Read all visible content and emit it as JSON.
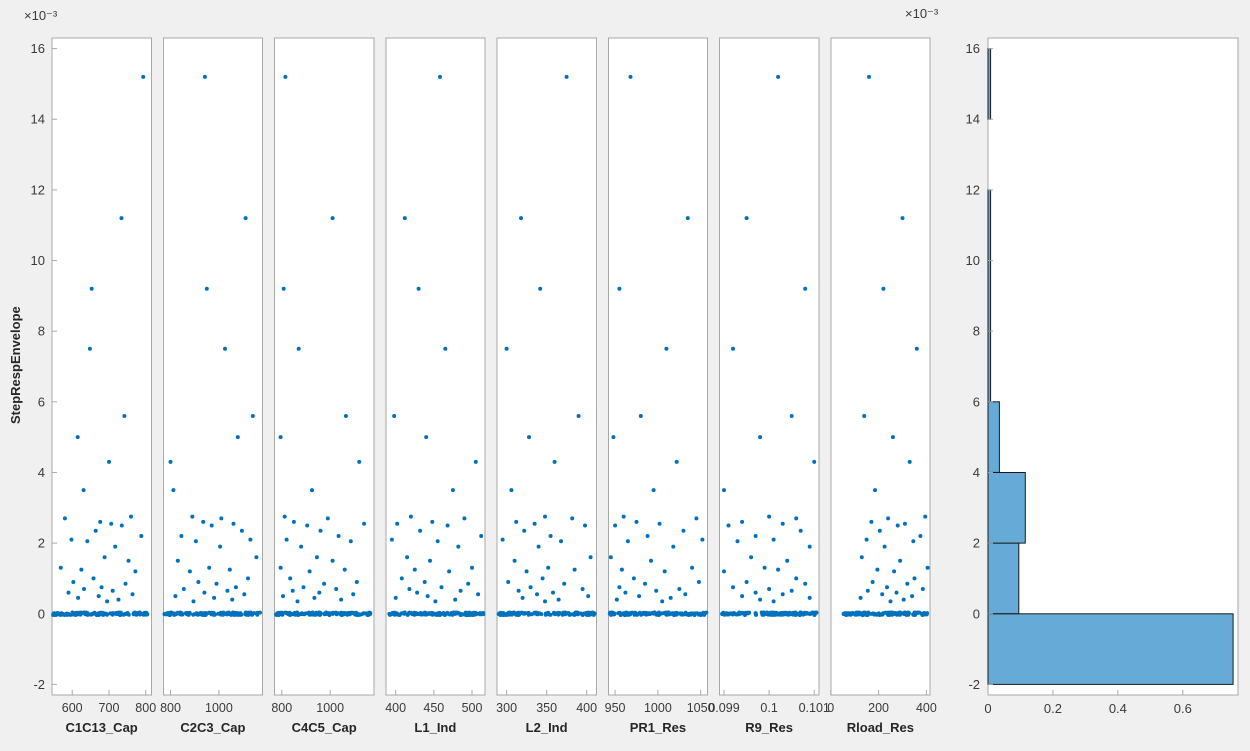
{
  "chart_data": {
    "type": "scatter",
    "title": "",
    "ylabel": "StepRespEnvelope",
    "y_exponent_label": "×10⁻³",
    "ylim": [
      -2.3,
      16.3
    ],
    "yticks": [
      16,
      14,
      12,
      10,
      8,
      6,
      4,
      2,
      0,
      -2
    ],
    "marker_color": "#0072bd",
    "axis_color": "#a8a8a8",
    "text_color": "#3a3a3a",
    "label_color": "#262626",
    "background": "#f0f0f0",
    "panel_background": "#ffffff",
    "shared_y_values_e3": [
      15.2,
      11.2,
      9.2,
      7.5,
      5.6,
      5.0,
      4.3,
      3.5,
      2.75,
      2.7,
      2.6,
      2.55,
      2.5,
      2.35,
      2.2,
      2.1,
      2.05,
      1.9,
      1.6,
      1.5,
      1.3,
      1.25,
      1.2,
      1.0,
      0.9,
      0.85,
      0.75,
      0.7,
      0.65,
      0.6,
      0.55,
      0.5,
      0.45,
      0.4,
      0.35
    ],
    "baseline": {
      "y": 0,
      "count": 130,
      "description": "dense cluster of samples with StepRespEnvelope ≈ 0 across the full parameter range"
    },
    "panels": [
      {
        "label": "C1C13_Cap",
        "xlim": [
          545,
          815
        ],
        "xtick_values": [
          600,
          700,
          800
        ],
        "xtick_labels": [
          "600",
          "700",
          "800"
        ],
        "baseline_x_range": [
          548,
          812
        ],
        "x_values": [
          793,
          734,
          653,
          648,
          742,
          615,
          700,
          631,
          760,
          580,
          676,
          706,
          735,
          664,
          788,
          598,
          641,
          717,
          688,
          753,
          569,
          625,
          772,
          658,
          603,
          745,
          680,
          632,
          710,
          590,
          764,
          672,
          616,
          726,
          695
        ]
      },
      {
        "label": "C2C3_Cap",
        "xlim": [
          770,
          1180
        ],
        "xtick_values": [
          800,
          1000
        ],
        "xtick_labels": [
          "800",
          "1000"
        ],
        "baseline_x_range": [
          775,
          1175
        ],
        "x_values": [
          942,
          1110,
          950,
          1025,
          1140,
          1078,
          800,
          812,
          890,
          1010,
          935,
          1060,
          970,
          1095,
          845,
          1130,
          905,
          1005,
          1155,
          830,
          960,
          1045,
          880,
          1120,
          915,
          990,
          1070,
          855,
          1035,
          940,
          1105,
          820,
          980,
          1055,
          895
        ]
      },
      {
        "label": "C4C5_Cap",
        "xlim": [
          770,
          1180
        ],
        "xtick_values": [
          800,
          1000
        ],
        "xtick_labels": [
          "800",
          "1000"
        ],
        "baseline_x_range": [
          775,
          1175
        ],
        "x_values": [
          815,
          1010,
          808,
          870,
          1065,
          795,
          1120,
          925,
          812,
          990,
          850,
          1140,
          905,
          960,
          1035,
          820,
          1085,
          880,
          945,
          1010,
          795,
          1060,
          915,
          835,
          1110,
          975,
          890,
          1025,
          845,
          955,
          1095,
          805,
          935,
          1045,
          865
        ]
      },
      {
        "label": "L1_Ind",
        "xlim": [
          387,
          517
        ],
        "xtick_values": [
          400,
          450,
          500
        ],
        "xtick_labels": [
          "400",
          "450",
          "500"
        ],
        "baseline_x_range": [
          389,
          515
        ],
        "x_values": [
          458,
          412,
          430,
          465,
          398,
          440,
          505,
          475,
          420,
          490,
          448,
          402,
          468,
          432,
          512,
          395,
          455,
          482,
          415,
          445,
          500,
          425,
          470,
          408,
          438,
          495,
          460,
          418,
          485,
          428,
          508,
          442,
          400,
          478,
          452
        ]
      },
      {
        "label": "L2_Ind",
        "xlim": [
          288,
          412
        ],
        "xtick_values": [
          300,
          350,
          400
        ],
        "xtick_labels": [
          "300",
          "350",
          "400"
        ],
        "baseline_x_range": [
          290,
          410
        ],
        "x_values": [
          375,
          318,
          342,
          300,
          390,
          328,
          360,
          306,
          348,
          382,
          312,
          335,
          398,
          322,
          355,
          295,
          368,
          340,
          405,
          310,
          352,
          385,
          325,
          345,
          302,
          372,
          330,
          395,
          315,
          358,
          338,
          402,
          320,
          365,
          348
        ]
      },
      {
        "label": "PR1_Res",
        "xlim": [
          942,
          1058
        ],
        "xtick_values": [
          950,
          1000,
          1050
        ],
        "xtick_labels": [
          "950",
          "1000",
          "1050"
        ],
        "baseline_x_range": [
          943,
          1057
        ],
        "x_values": [
          968,
          1035,
          955,
          1010,
          980,
          948,
          1022,
          995,
          960,
          1045,
          975,
          1002,
          950,
          1030,
          988,
          1052,
          965,
          1018,
          945,
          992,
          1040,
          958,
          1008,
          972,
          1048,
          985,
          955,
          1025,
          998,
          962,
          1032,
          978,
          1015,
          952,
          1005
        ]
      },
      {
        "label": "R9_Res",
        "xlim": [
          0.0989,
          0.1011
        ],
        "xtick_values": [
          0.099,
          0.1,
          0.101
        ],
        "xtick_labels": [
          "0.099",
          "0.1",
          "0.101"
        ],
        "baseline_x_range": [
          0.09895,
          0.10105
        ],
        "x_values": [
          0.1002,
          0.0995,
          0.1008,
          0.0992,
          0.1005,
          0.0998,
          0.101,
          0.099,
          0.1,
          0.1006,
          0.0994,
          0.1003,
          0.0991,
          0.1007,
          0.0997,
          0.1001,
          0.0993,
          0.1009,
          0.0996,
          0.1004,
          0.0999,
          0.1002,
          0.099,
          0.1006,
          0.0995,
          0.1008,
          0.0992,
          0.1,
          0.1005,
          0.0997,
          0.1003,
          0.0994,
          0.1009,
          0.0998,
          0.1001
        ]
      },
      {
        "label": "Rload_Res",
        "xlim": [
          0,
          415
        ],
        "xtick_values": [
          0,
          200,
          400
        ],
        "xtick_labels": [
          "0",
          "200",
          "400"
        ],
        "baseline_x_range": [
          52,
          405
        ],
        "x_values": [
          160,
          300,
          220,
          360,
          140,
          260,
          330,
          185,
          395,
          240,
          170,
          310,
          280,
          205,
          375,
          150,
          345,
          225,
          130,
          290,
          405,
          195,
          265,
          350,
          175,
          320,
          235,
          385,
          155,
          275,
          215,
          340,
          125,
          305,
          250
        ]
      }
    ],
    "histogram": {
      "type": "bar-horizontal",
      "orientation": "horizontal",
      "xlim": [
        0,
        0.77
      ],
      "xtick_values": [
        0,
        0.2,
        0.4,
        0.6
      ],
      "xtick_labels": [
        "0",
        "0.2",
        "0.4",
        "0.6"
      ],
      "bin_edges_e3": [
        -2,
        0,
        2,
        4,
        6,
        8,
        10,
        12,
        14,
        16
      ],
      "values": [
        0.755,
        0.095,
        0.115,
        0.035,
        0.008,
        0.008,
        0.008,
        0,
        0.008
      ],
      "face_color": "#66aad7",
      "edge_color": "#1a1a1a"
    }
  }
}
